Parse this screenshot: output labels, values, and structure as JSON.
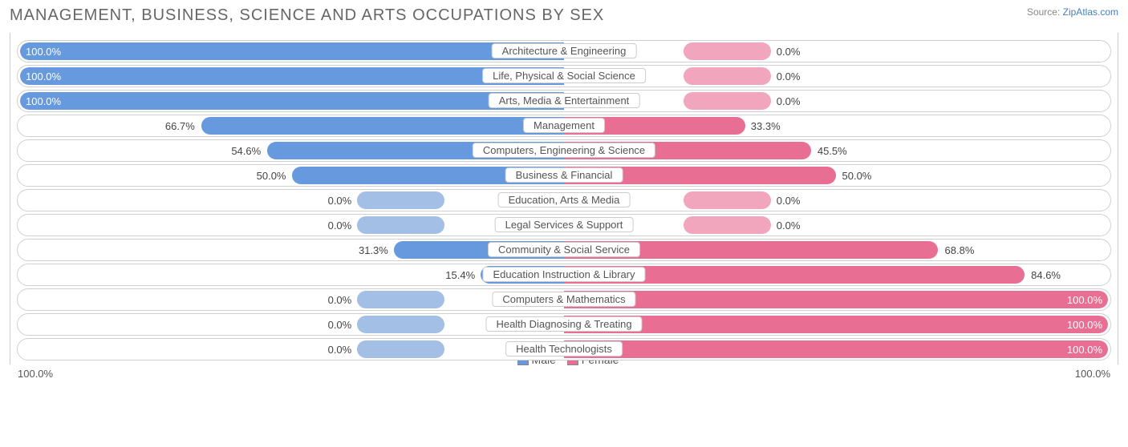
{
  "title": "MANAGEMENT, BUSINESS, SCIENCE AND ARTS OCCUPATIONS BY SEX",
  "source_label": "Source:",
  "source_link": "ZipAtlas.com",
  "axis_left": "100.0%",
  "axis_right": "100.0%",
  "legend_male": "Male",
  "legend_female": "Female",
  "colors": {
    "male_bar": "#6699dd",
    "female_bar": "#e86e94",
    "male_small": "#a3bfe6",
    "female_small": "#f2a6bd",
    "swatch_male": "#6699dd",
    "swatch_female": "#e86e94"
  },
  "rows": [
    {
      "category": "Architecture & Engineering",
      "male": 100.0,
      "female": 0.0,
      "male_label": "100.0%",
      "female_label": "0.0%"
    },
    {
      "category": "Life, Physical & Social Science",
      "male": 100.0,
      "female": 0.0,
      "male_label": "100.0%",
      "female_label": "0.0%"
    },
    {
      "category": "Arts, Media & Entertainment",
      "male": 100.0,
      "female": 0.0,
      "male_label": "100.0%",
      "female_label": "0.0%"
    },
    {
      "category": "Management",
      "male": 66.7,
      "female": 33.3,
      "male_label": "66.7%",
      "female_label": "33.3%"
    },
    {
      "category": "Computers, Engineering & Science",
      "male": 54.6,
      "female": 45.5,
      "male_label": "54.6%",
      "female_label": "45.5%"
    },
    {
      "category": "Business & Financial",
      "male": 50.0,
      "female": 50.0,
      "male_label": "50.0%",
      "female_label": "50.0%"
    },
    {
      "category": "Education, Arts & Media",
      "male": 0.0,
      "female": 0.0,
      "male_label": "0.0%",
      "female_label": "0.0%"
    },
    {
      "category": "Legal Services & Support",
      "male": 0.0,
      "female": 0.0,
      "male_label": "0.0%",
      "female_label": "0.0%"
    },
    {
      "category": "Community & Social Service",
      "male": 31.3,
      "female": 68.8,
      "male_label": "31.3%",
      "female_label": "68.8%"
    },
    {
      "category": "Education Instruction & Library",
      "male": 15.4,
      "female": 84.6,
      "male_label": "15.4%",
      "female_label": "84.6%"
    },
    {
      "category": "Computers & Mathematics",
      "male": 0.0,
      "female": 100.0,
      "male_label": "0.0%",
      "female_label": "100.0%"
    },
    {
      "category": "Health Diagnosing & Treating",
      "male": 0.0,
      "female": 100.0,
      "male_label": "0.0%",
      "female_label": "100.0%"
    },
    {
      "category": "Health Technologists",
      "male": 0.0,
      "female": 100.0,
      "male_label": "0.0%",
      "female_label": "100.0%"
    }
  ]
}
